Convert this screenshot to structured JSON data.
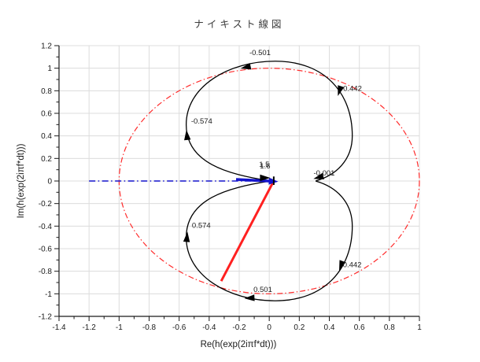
{
  "chart_data": {
    "type": "line",
    "title": "ナイキスト線図",
    "xlabel": "Re(h(exp(2iπf*dt)))",
    "ylabel": "Im(h(exp(2iπf*dt)))",
    "xlim": [
      -1.4,
      1
    ],
    "ylim": [
      -1.2,
      1.2
    ],
    "grid": true,
    "legend": "none",
    "xticks": {
      "values": [
        -1.4,
        -1.2,
        -1,
        -0.8,
        -0.6,
        -0.4,
        -0.2,
        0,
        0.2,
        0.4,
        0.6,
        0.8,
        1
      ],
      "labels": [
        "-1.4",
        "-1.2",
        "-1",
        "-0.8",
        "-0.6",
        "-0.4",
        "-0.2",
        "0",
        "0.2",
        "0.4",
        "0.6",
        "0.8",
        "1"
      ],
      "minor": [
        -1.3,
        -1.1,
        -0.9,
        -0.7,
        -0.5,
        -0.3,
        -0.1,
        0.1,
        0.3,
        0.5,
        0.7,
        0.9
      ]
    },
    "yticks": {
      "values": [
        -1.2,
        -1,
        -0.8,
        -0.6,
        -0.4,
        -0.2,
        0,
        0.2,
        0.4,
        0.6,
        0.8,
        1,
        1.2
      ],
      "labels": [
        "-1.2",
        "-1",
        "-0.8",
        "-0.6",
        "-0.4",
        "-0.2",
        "0",
        "0.2",
        "0.4",
        "0.6",
        "0.8",
        "1",
        "1.2"
      ],
      "minor": [
        -1.1,
        -0.9,
        -0.7,
        -0.5,
        -0.3,
        -0.1,
        0.1,
        0.3,
        0.5,
        0.7,
        0.9,
        1.1
      ]
    },
    "colors": {
      "curve": "#000000",
      "unit_circle": "#ff2b2b",
      "real_axis_line": "#1414cc",
      "radius_line": "#ff2020",
      "grid": "#dcdcdc",
      "axis": "#1a1a1a",
      "text": "#1a1a1a",
      "title": "#3d3d3d"
    },
    "series": [
      {
        "name": "nyquist-locus",
        "color": "#000000",
        "line": "solid",
        "path": [
          [
            "M",
            0,
            0.002
          ],
          [
            "C",
            -0.28,
            0.06,
            -0.553,
            0.16,
            -0.553,
            0.5
          ],
          [
            "C",
            -0.553,
            0.84,
            -0.27,
            1.062,
            0.04,
            1.062
          ],
          [
            "C",
            0.37,
            1.062,
            0.553,
            0.78,
            0.553,
            0.4
          ],
          [
            "C",
            0.553,
            0.18,
            0.44,
            0.05,
            0.312,
            0.002
          ],
          [
            "L",
            0.312,
            -0.002
          ],
          [
            "C",
            0.44,
            -0.05,
            0.553,
            -0.18,
            0.553,
            -0.4
          ],
          [
            "C",
            0.553,
            -0.78,
            0.37,
            -1.062,
            0.04,
            -1.062
          ],
          [
            "C",
            -0.27,
            -1.062,
            -0.553,
            -0.84,
            -0.553,
            -0.5
          ],
          [
            "C",
            -0.553,
            -0.16,
            -0.28,
            -0.06,
            0,
            -0.002
          ]
        ]
      },
      {
        "name": "unit-circle",
        "color": "#ff2b2b",
        "line": "dash-dot",
        "center": [
          0,
          0
        ],
        "radius": 1
      },
      {
        "name": "real-axis-segment",
        "color": "#1414cc",
        "line": "dash-dot",
        "from": [
          -1.2,
          0
        ],
        "to": [
          -0.02,
          0
        ]
      },
      {
        "name": "radius-line",
        "color": "#ff2020",
        "line": "solid",
        "from": [
          0.028,
          -0.005
        ],
        "to": [
          -0.32,
          -0.887
        ]
      }
    ],
    "annotations": {
      "freq_labels": [
        {
          "text": "-0.501",
          "x": -0.132,
          "y": 1.115
        },
        {
          "text": "-0.442",
          "x": 0.476,
          "y": 0.8
        },
        {
          "text": "-0.574",
          "x": -0.52,
          "y": 0.51
        },
        {
          "text": "-0.001",
          "x": 0.295,
          "y": 0.05
        },
        {
          "text": "1.5",
          "x": -0.068,
          "y": 0.125
        },
        {
          "text": "1.6",
          "x": -0.062,
          "y": 0.112
        },
        {
          "text": "0.574",
          "x": -0.515,
          "y": -0.415
        },
        {
          "text": "0.442",
          "x": 0.49,
          "y": -0.765
        },
        {
          "text": "0.501",
          "x": -0.105,
          "y": -0.985
        }
      ],
      "arrows": [
        {
          "x": -0.548,
          "y": 0.405,
          "angle": 96
        },
        {
          "x": -0.155,
          "y": 1.008,
          "angle": 192
        },
        {
          "x": 0.468,
          "y": 0.8,
          "angle": 252
        },
        {
          "x": 0.33,
          "y": 0.032,
          "angle": 195
        },
        {
          "x": -0.03,
          "y": 0.028,
          "angle": 0
        },
        {
          "x": 0.478,
          "y": -0.75,
          "angle": 250
        },
        {
          "x": -0.13,
          "y": -1.038,
          "angle": 183
        },
        {
          "x": -0.548,
          "y": -0.498,
          "angle": 85
        }
      ],
      "blue_arrow": {
        "from": [
          -0.221,
          0.014
        ],
        "to": [
          0.018,
          -0.002
        ]
      },
      "origin_marker": {
        "x": 0.03,
        "y1": 0.04,
        "y2": -0.035
      }
    }
  }
}
